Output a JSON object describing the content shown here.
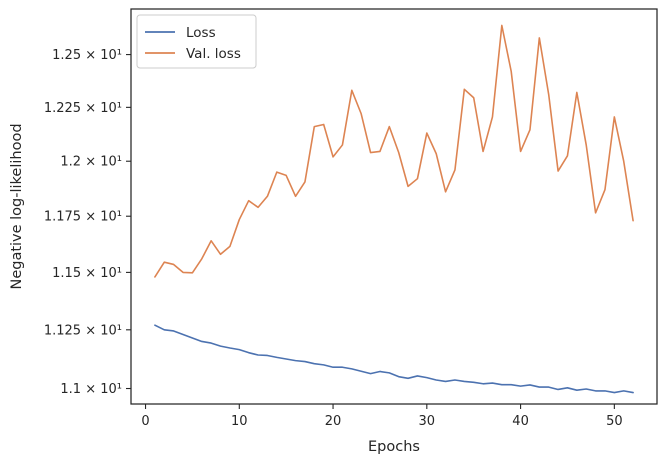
{
  "chart_data": {
    "type": "line",
    "xlabel": "Epochs",
    "ylabel": "Negative log-likelihood",
    "xlim": [
      -1.55,
      54.55
    ],
    "ylim": [
      10.935,
      12.72
    ],
    "yscale": "log",
    "x_ticks": [
      0,
      10,
      20,
      30,
      40,
      50
    ],
    "y_ticks": [
      {
        "value": 11.0,
        "label": "1.1 × 10¹"
      },
      {
        "value": 11.25,
        "label": "1.125 × 10¹"
      },
      {
        "value": 11.5,
        "label": "1.15 × 10¹"
      },
      {
        "value": 11.75,
        "label": "1.175 × 10¹"
      },
      {
        "value": 12.0,
        "label": "1.2 × 10¹"
      },
      {
        "value": 12.25,
        "label": "1.225 × 10¹"
      },
      {
        "value": 12.5,
        "label": "1.25 × 10¹"
      }
    ],
    "grid": false,
    "legend_position": "top-left",
    "x": [
      1,
      2,
      3,
      4,
      5,
      6,
      7,
      8,
      9,
      10,
      11,
      12,
      13,
      14,
      15,
      16,
      17,
      18,
      19,
      20,
      21,
      22,
      23,
      24,
      25,
      26,
      27,
      28,
      29,
      30,
      31,
      32,
      33,
      34,
      35,
      36,
      37,
      38,
      39,
      40,
      41,
      42,
      43,
      44,
      45,
      46,
      47,
      48,
      49,
      50,
      51,
      52
    ],
    "series": [
      {
        "name": "Loss",
        "color": "#4c72b0",
        "values": [
          11.27,
          11.25,
          11.245,
          11.23,
          11.215,
          11.2,
          11.193,
          11.18,
          11.172,
          11.165,
          11.152,
          11.142,
          11.14,
          11.132,
          11.125,
          11.118,
          11.114,
          11.105,
          11.1,
          11.09,
          11.09,
          11.083,
          11.073,
          11.063,
          11.072,
          11.066,
          11.05,
          11.043,
          11.053,
          11.046,
          11.036,
          11.03,
          11.036,
          11.03,
          11.026,
          11.02,
          11.023,
          11.016,
          11.016,
          11.01,
          11.015,
          11.006,
          11.006,
          10.996,
          11.003,
          10.993,
          10.998,
          10.99,
          10.99,
          10.983,
          10.99,
          10.983
        ]
      },
      {
        "name": "Val. loss",
        "color": "#dd8452",
        "values": [
          11.48,
          11.545,
          11.535,
          11.5,
          11.498,
          11.56,
          11.64,
          11.58,
          11.615,
          11.735,
          11.82,
          11.79,
          11.84,
          11.95,
          11.935,
          11.84,
          11.905,
          12.16,
          12.17,
          12.02,
          12.075,
          12.33,
          12.22,
          12.04,
          12.045,
          12.16,
          12.04,
          11.885,
          11.92,
          12.13,
          12.035,
          11.86,
          11.96,
          12.335,
          12.295,
          12.045,
          12.205,
          12.64,
          12.42,
          12.045,
          12.145,
          12.58,
          12.31,
          11.955,
          12.025,
          12.32,
          12.075,
          11.765,
          11.87,
          12.205,
          12.0,
          11.73
        ]
      }
    ]
  }
}
